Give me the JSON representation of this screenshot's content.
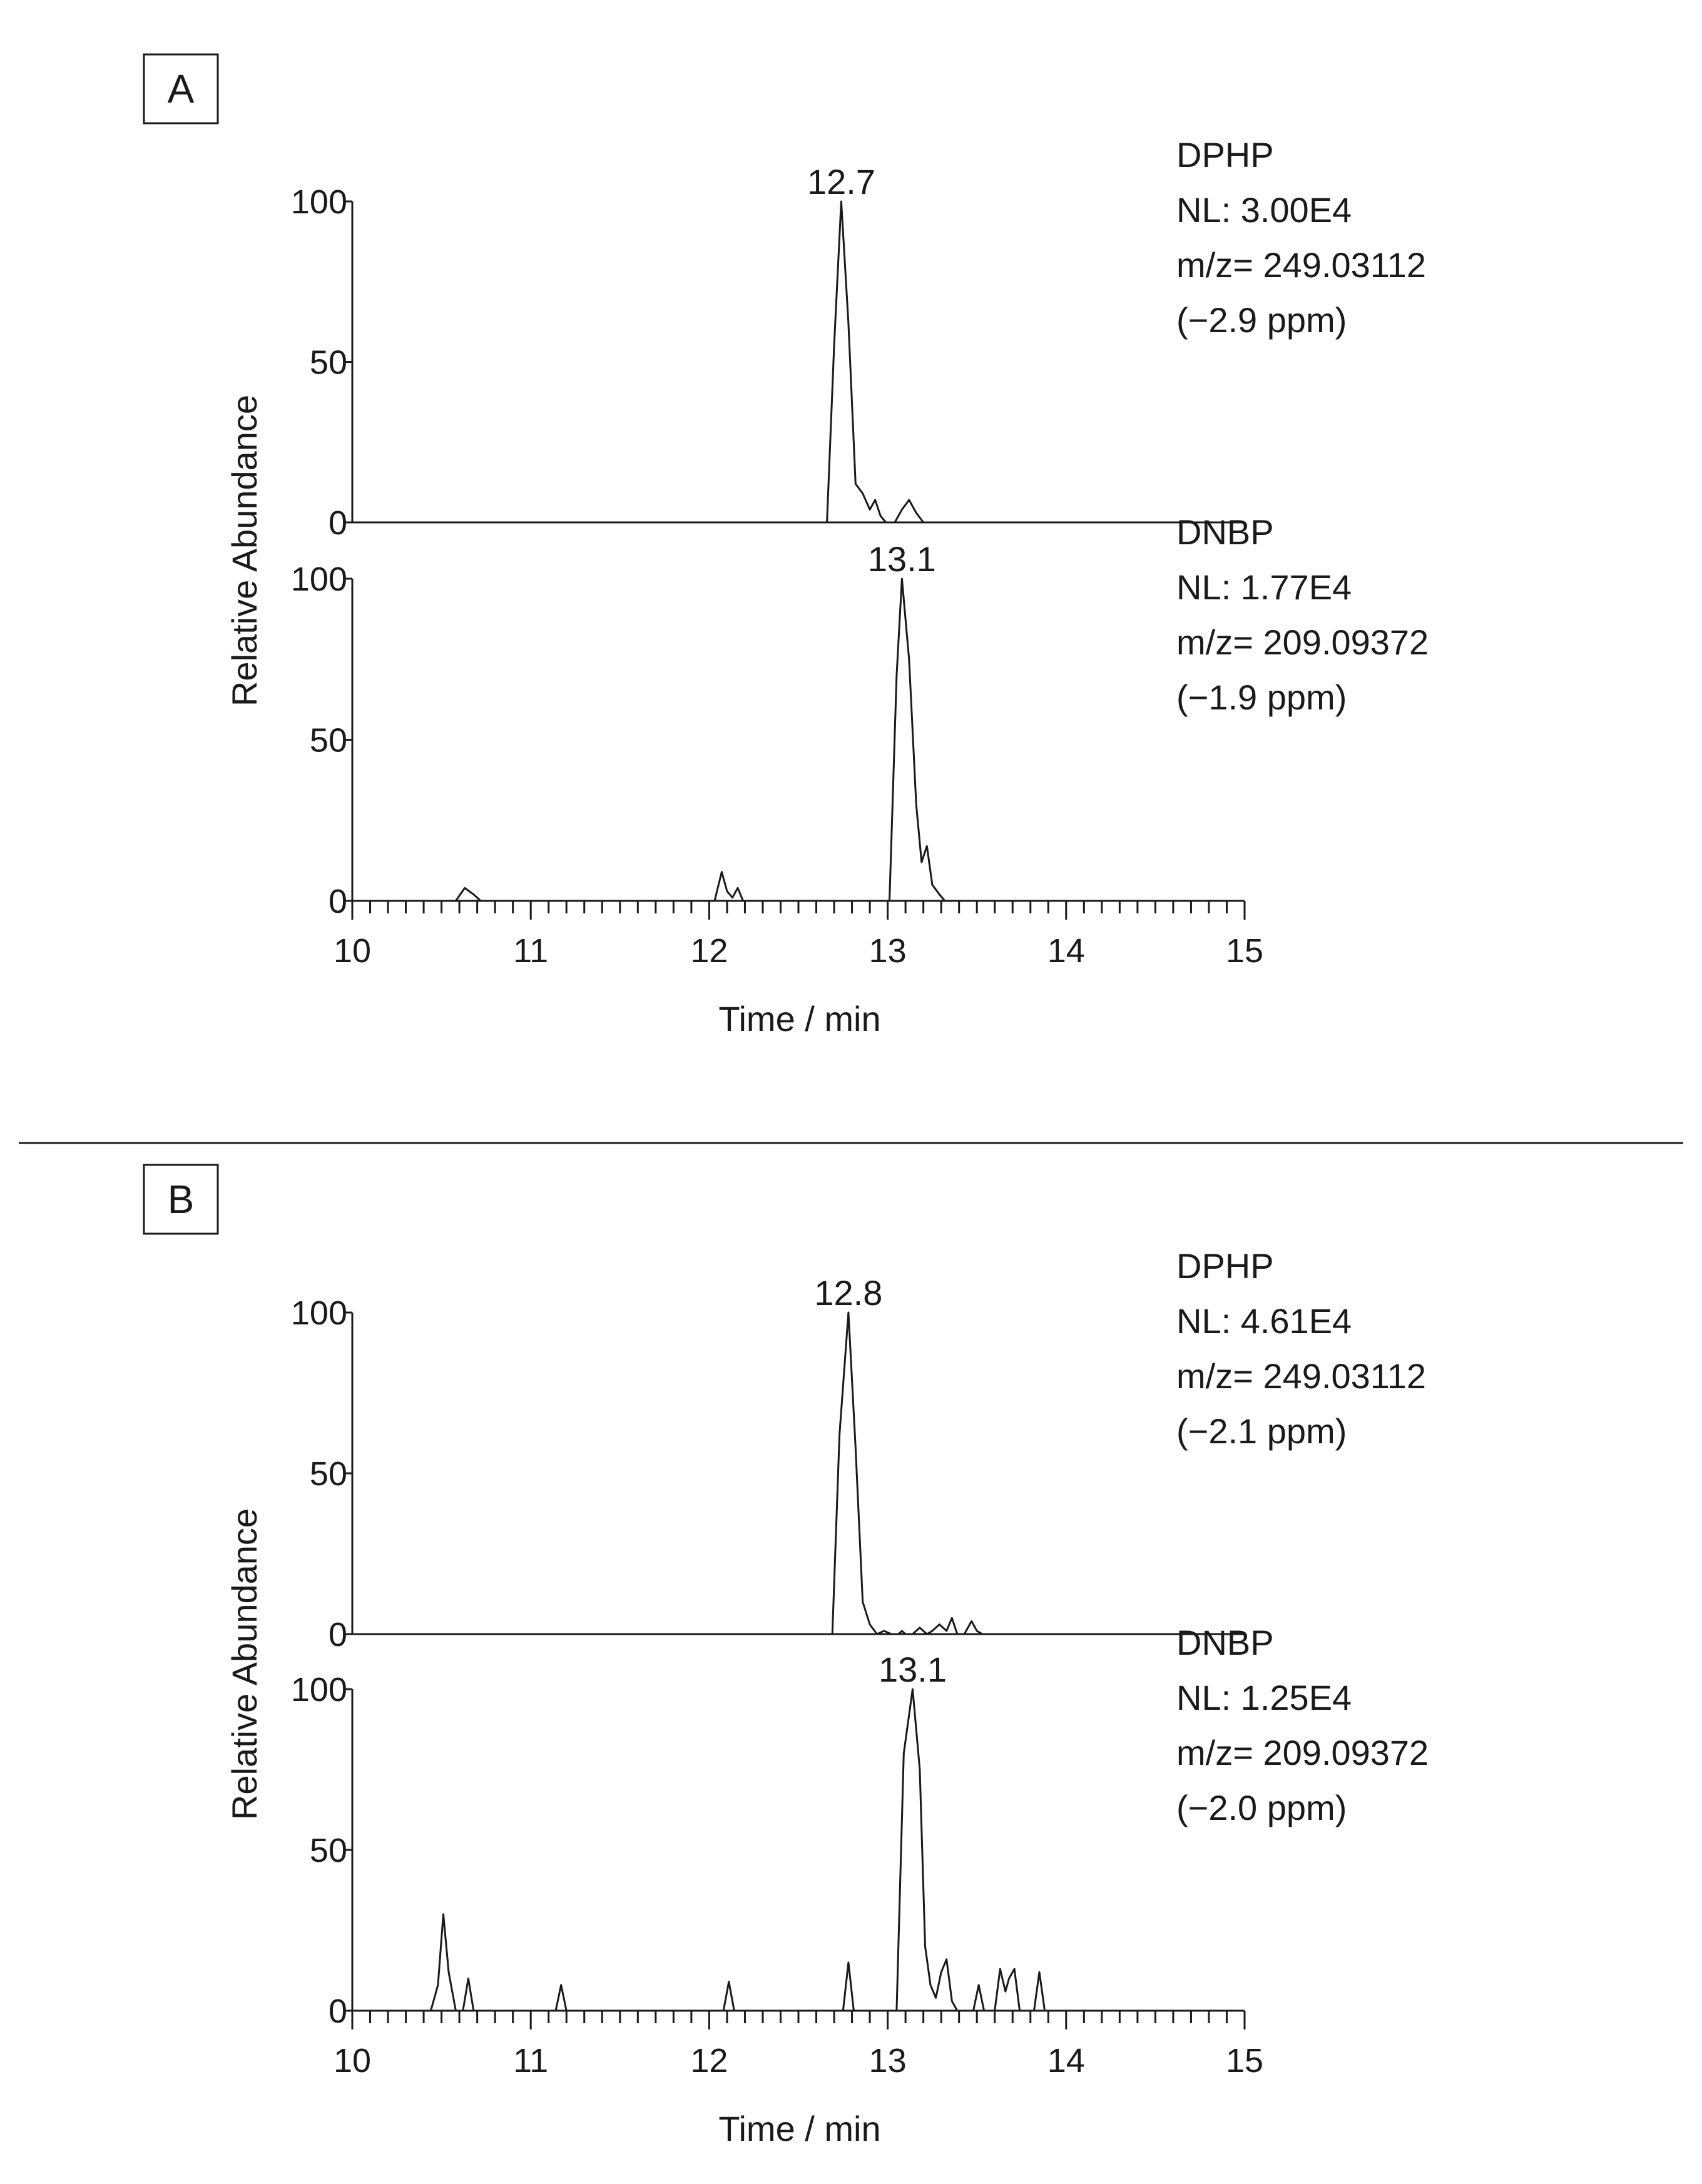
{
  "chart_data": [
    {
      "panel": "A",
      "type": "line",
      "xlabel": "Time  / min",
      "ylabel": "Relative  Abundance",
      "xlim": [
        10,
        15
      ],
      "x_ticks": [
        "10",
        "11",
        "12",
        "13",
        "14",
        "15"
      ],
      "x_minor_step": 0.1,
      "traces": [
        {
          "compound": "DPHP",
          "nl": "NL: 3.00E4",
          "mz": "m/z= 249.03112",
          "ppm": "(−2.9 ppm)",
          "ylim": [
            0,
            100
          ],
          "y_ticks": [
            "100",
            "50",
            "0"
          ],
          "peak_label": "12.7",
          "peak_x": 12.74,
          "x": [
            10.0,
            12.66,
            12.7,
            12.74,
            12.78,
            12.82,
            12.86,
            12.9,
            12.93,
            12.96,
            12.99,
            13.04,
            13.08,
            13.12,
            13.16,
            13.2,
            15.0
          ],
          "y": [
            0,
            0,
            55,
            100,
            62,
            12,
            9,
            4,
            7,
            2,
            0,
            0,
            4,
            7,
            3,
            0,
            0
          ]
        },
        {
          "compound": "DNBP",
          "nl": "NL: 1.77E4",
          "mz": "m/z= 209.09372",
          "ppm": "(−1.9 ppm)",
          "ylim": [
            0,
            100
          ],
          "y_ticks": [
            "100",
            "50",
            "0"
          ],
          "peak_label": "13.1",
          "peak_x": 13.08,
          "x": [
            10.0,
            10.58,
            10.63,
            10.68,
            10.72,
            12.03,
            12.07,
            12.1,
            12.13,
            12.16,
            12.19,
            13.01,
            13.05,
            13.08,
            13.12,
            13.16,
            13.19,
            13.22,
            13.25,
            13.29,
            13.32,
            15.0
          ],
          "y": [
            0,
            0,
            4,
            2,
            0,
            0,
            9,
            3,
            1,
            4,
            0,
            0,
            70,
            100,
            75,
            30,
            12,
            17,
            5,
            2,
            0,
            0
          ]
        }
      ]
    },
    {
      "panel": "B",
      "type": "line",
      "xlabel": "Time  / min",
      "ylabel": "Relative  Abundance",
      "xlim": [
        10,
        15
      ],
      "x_ticks": [
        "10",
        "11",
        "12",
        "13",
        "14",
        "15"
      ],
      "x_minor_step": 0.1,
      "traces": [
        {
          "compound": "DPHP",
          "nl": "NL: 4.61E4",
          "mz": "m/z= 249.03112",
          "ppm": "(−2.1 ppm)",
          "ylim": [
            0,
            100
          ],
          "y_ticks": [
            "100",
            "50",
            "0"
          ],
          "peak_label": "12.8",
          "peak_x": 12.78,
          "x": [
            10.0,
            12.69,
            12.73,
            12.78,
            12.82,
            12.86,
            12.9,
            12.94,
            12.98,
            13.02,
            13.06,
            13.08,
            13.1,
            13.14,
            13.18,
            13.22,
            13.25,
            13.29,
            13.33,
            13.36,
            13.39,
            13.43,
            13.47,
            13.5,
            13.53,
            15.0
          ],
          "y": [
            0,
            0,
            62,
            100,
            58,
            10,
            3,
            0,
            1,
            0,
            0,
            1,
            0,
            0,
            2,
            0,
            1,
            3,
            1,
            5,
            0,
            0,
            4,
            1,
            0,
            0
          ]
        },
        {
          "compound": "DNBP",
          "nl": "NL: 1.25E4",
          "mz": "m/z= 209.09372",
          "ppm": "(−2.0 ppm)",
          "ylim": [
            0,
            100
          ],
          "y_ticks": [
            "100",
            "50",
            "0"
          ],
          "peak_label": "13.1",
          "peak_x": 13.14,
          "x": [
            10.0,
            10.44,
            10.48,
            10.51,
            10.54,
            10.58,
            10.62,
            10.65,
            10.68,
            11.14,
            11.17,
            11.2,
            12.08,
            12.11,
            12.14,
            12.75,
            12.78,
            12.81,
            13.05,
            13.09,
            13.14,
            13.18,
            13.21,
            13.24,
            13.27,
            13.3,
            13.33,
            13.36,
            13.39,
            13.48,
            13.51,
            13.54,
            13.6,
            13.63,
            13.66,
            13.68,
            13.71,
            13.74,
            13.82,
            13.85,
            13.88,
            15.0
          ],
          "y": [
            0,
            0,
            8,
            30,
            12,
            0,
            0,
            10,
            0,
            0,
            8,
            0,
            0,
            9,
            0,
            0,
            15,
            0,
            0,
            80,
            100,
            75,
            20,
            8,
            4,
            12,
            16,
            3,
            0,
            0,
            8,
            0,
            0,
            13,
            6,
            10,
            13,
            0,
            0,
            12,
            0,
            0
          ]
        }
      ]
    }
  ]
}
